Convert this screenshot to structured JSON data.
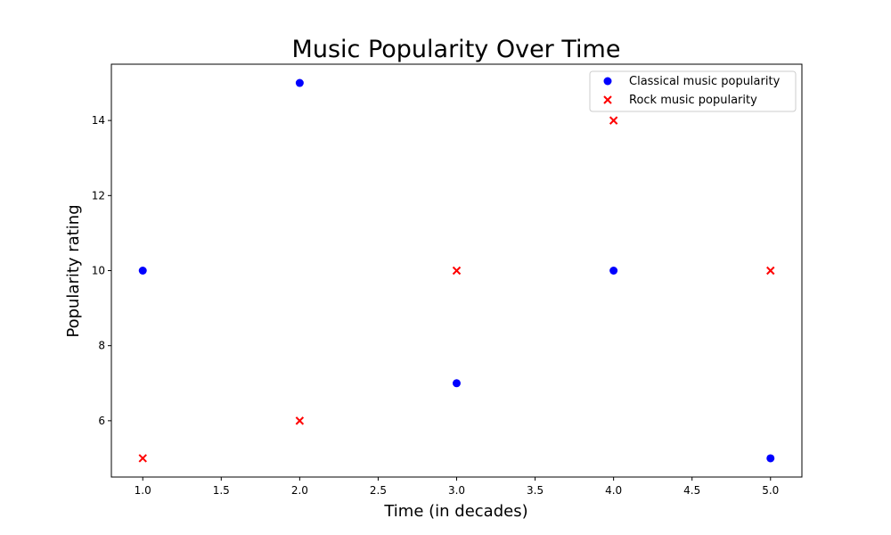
{
  "chart_data": {
    "type": "scatter",
    "title": "Music Popularity Over Time",
    "xlabel": "Time (in decades)",
    "ylabel": "Popularity rating",
    "xlim": [
      0.8,
      5.2
    ],
    "ylim": [
      4.5,
      15.5
    ],
    "xticks": [
      1.0,
      1.5,
      2.0,
      2.5,
      3.0,
      3.5,
      4.0,
      4.5,
      5.0
    ],
    "xtick_labels": [
      "1.0",
      "1.5",
      "2.0",
      "2.5",
      "3.0",
      "3.5",
      "4.0",
      "4.5",
      "5.0"
    ],
    "yticks": [
      6,
      8,
      10,
      12,
      14
    ],
    "ytick_labels": [
      "6",
      "8",
      "10",
      "12",
      "14"
    ],
    "grid": false,
    "legend_position": "top-right",
    "series": [
      {
        "name": "Classical music popularity",
        "marker": "circle",
        "color": "#0000ff",
        "x": [
          1,
          2,
          3,
          4,
          5
        ],
        "y": [
          10,
          15,
          7,
          10,
          5
        ]
      },
      {
        "name": "Rock music popularity",
        "marker": "x",
        "color": "#ff0000",
        "x": [
          1,
          2,
          3,
          4,
          5
        ],
        "y": [
          5,
          6,
          10,
          14,
          10
        ]
      }
    ]
  }
}
